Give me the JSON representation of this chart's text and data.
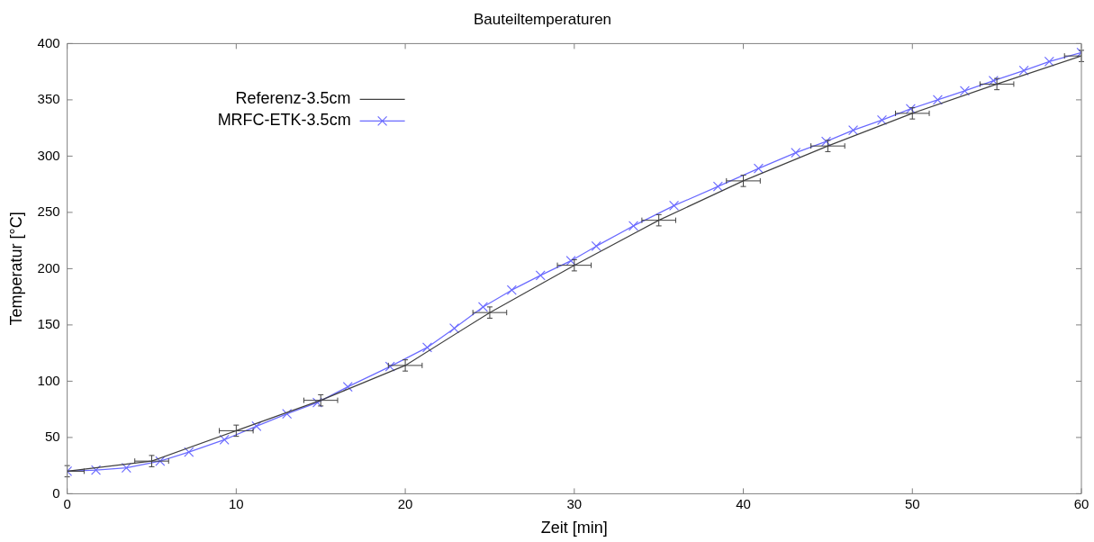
{
  "chart_data": {
    "type": "line",
    "title": "Bauteiltemperaturen",
    "xlabel": "Zeit [min]",
    "ylabel": "Temperatur [°C]",
    "xlim": [
      0,
      60
    ],
    "xticks": [
      0,
      10,
      20,
      30,
      40,
      50,
      60
    ],
    "ylim": [
      0,
      400
    ],
    "yticks": [
      0,
      50,
      100,
      150,
      200,
      250,
      300,
      350,
      400
    ],
    "grid": false,
    "legend": "top left",
    "series": [
      {
        "name": "Referenz-3.5cm",
        "color": "#404040",
        "marker": "none",
        "x": [
          0,
          5,
          10,
          15,
          20,
          25,
          30,
          35,
          40,
          45,
          50,
          55,
          60
        ],
        "values": [
          20,
          29,
          56,
          83,
          114,
          161,
          203,
          243,
          278,
          309,
          338,
          364,
          389
        ],
        "errors": [
          5,
          5,
          5,
          5,
          5,
          5,
          5,
          5,
          5,
          5,
          5,
          5,
          5
        ],
        "xerrors": [
          1,
          1,
          1,
          1,
          1,
          1,
          1,
          1,
          1,
          1,
          1,
          1,
          1
        ]
      },
      {
        "name": "MRFC-ETK-3.5cm",
        "color": "#6a6aff",
        "marker": "cross",
        "x": [
          0,
          1.7,
          3.5,
          5.5,
          7.2,
          9.3,
          11.2,
          13,
          14.8,
          16.6,
          19.1,
          21.3,
          22.9,
          24.6,
          26.3,
          28,
          29.8,
          31.3,
          33.5,
          35.9,
          38.5,
          40.9,
          43.1,
          44.9,
          46.5,
          48.2,
          49.9,
          51.5,
          53.1,
          54.8,
          56.6,
          58.1,
          60
        ],
        "values": [
          20,
          21,
          23,
          29,
          37,
          48,
          60,
          71,
          81,
          95,
          113,
          130,
          147,
          166,
          181,
          194,
          207,
          220,
          238,
          256,
          273,
          289,
          303,
          313,
          323,
          332,
          342,
          350,
          358,
          367,
          376,
          384,
          392
        ]
      }
    ]
  }
}
